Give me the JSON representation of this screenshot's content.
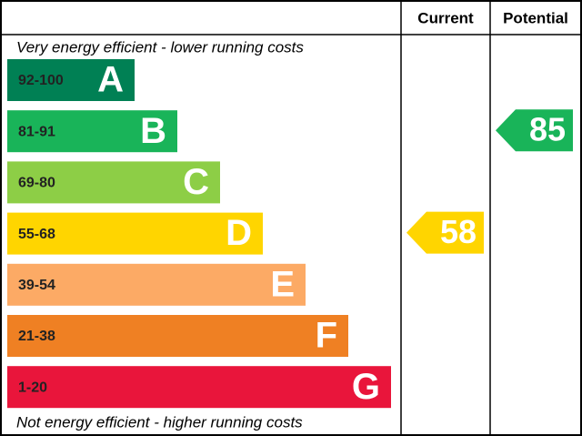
{
  "header": {
    "current": "Current",
    "potential": "Potential"
  },
  "top_note": "Very energy efficient - lower running costs",
  "bottom_note": "Not energy efficient - higher running costs",
  "bands": [
    {
      "range": "92-100",
      "letter": "A",
      "color": "#008054"
    },
    {
      "range": "81-91",
      "letter": "B",
      "color": "#19b459"
    },
    {
      "range": "69-80",
      "letter": "C",
      "color": "#8dce46"
    },
    {
      "range": "55-68",
      "letter": "D",
      "color": "#ffd500"
    },
    {
      "range": "39-54",
      "letter": "E",
      "color": "#fcaa65"
    },
    {
      "range": "21-38",
      "letter": "F",
      "color": "#ef8023"
    },
    {
      "range": "1-20",
      "letter": "G",
      "color": "#e9153b"
    }
  ],
  "current": {
    "value": 58,
    "band": 3
  },
  "potential": {
    "value": 85,
    "band": 1
  }
}
